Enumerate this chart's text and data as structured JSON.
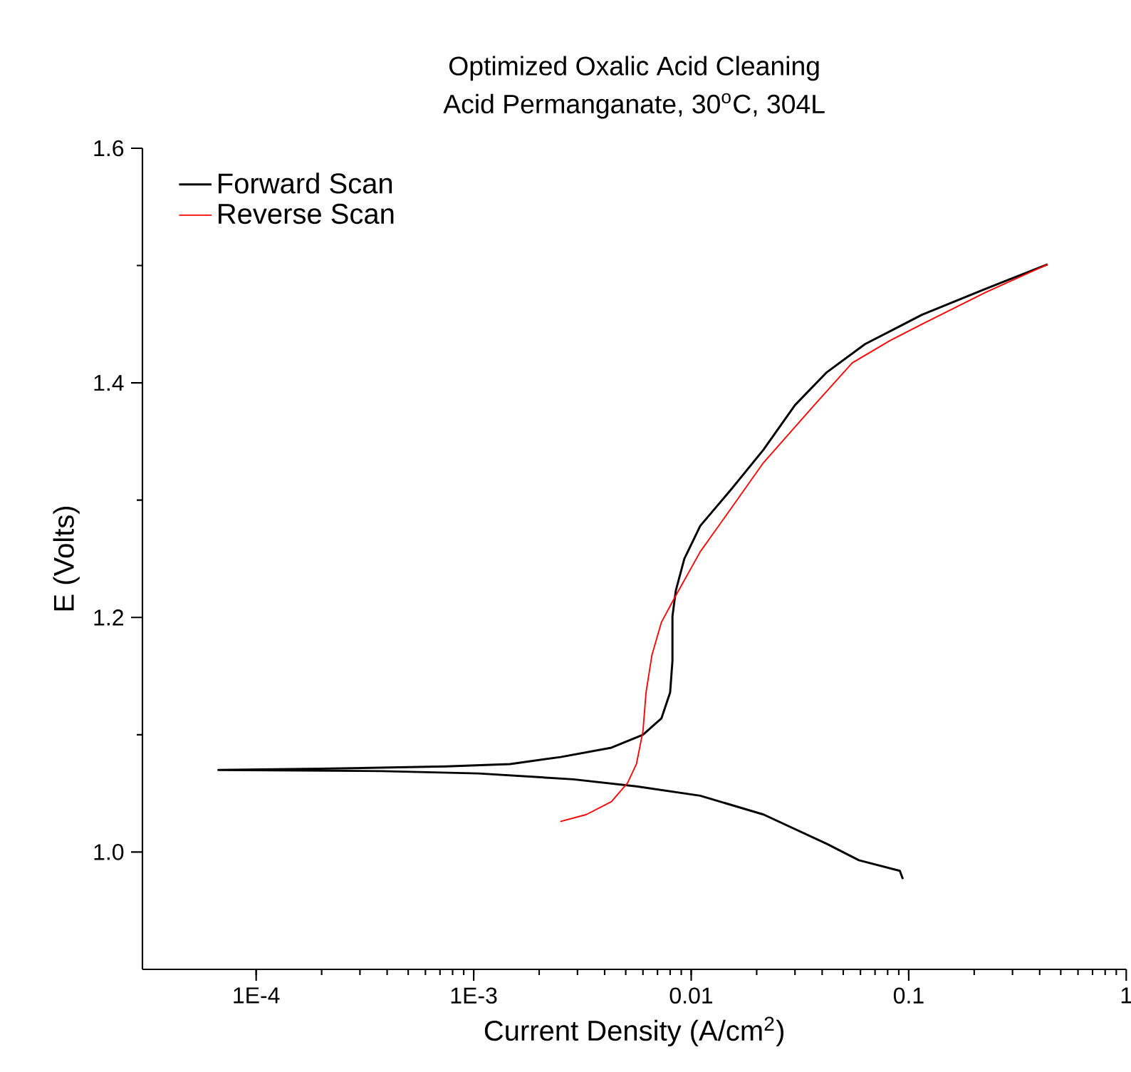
{
  "chart_data": {
    "type": "line",
    "title": "Optimized Oxalic Acid Cleaning",
    "subtitle": "Acid Permanganate, 30$^{o}$C, 304L",
    "xlabel": "Current Density (A/cm$^{2}$)",
    "ylabel": "E (Volts)",
    "log": "x",
    "xlim": [
      3e-05,
      1
    ],
    "ylim": [
      0.9,
      1.6
    ],
    "xticks": [
      {
        "value": 0.0001,
        "label": "1E-4"
      },
      {
        "value": 0.001,
        "label": "1E-3"
      },
      0.01,
      0.1,
      1
    ],
    "yticks": [
      {
        "value": 1.0,
        "label": "1.0"
      },
      1.2,
      1.4,
      1.6
    ],
    "grid": false,
    "legend": "top left",
    "marker": "none",
    "line_style": "solid",
    "series": [
      {
        "name": "Forward Scan",
        "color": "#000000",
        "x": [
          0.094,
          0.091,
          0.059,
          0.042,
          0.0215,
          0.011,
          0.0056,
          0.00287,
          0.00105,
          0.00038,
          6.7e-05,
          0.000196,
          0.00075,
          0.00147,
          0.00251,
          0.0043,
          0.006,
          0.0073,
          0.008,
          0.0082,
          0.0082,
          0.0085,
          0.0093,
          0.011,
          0.0154,
          0.0215,
          0.03,
          0.042,
          0.063,
          0.115,
          0.225,
          0.435
        ],
        "values": [
          0.977,
          0.984,
          0.993,
          1.007,
          1.032,
          1.048,
          1.056,
          1.062,
          1.067,
          1.069,
          1.07,
          1.071,
          1.073,
          1.075,
          1.081,
          1.089,
          1.1,
          1.114,
          1.136,
          1.163,
          1.201,
          1.223,
          1.25,
          1.278,
          1.31,
          1.343,
          1.381,
          1.409,
          1.433,
          1.458,
          1.48,
          1.501
        ]
      },
      {
        "name": "Reverse Scan",
        "color": "#ff0000",
        "x": [
          0.435,
          0.225,
          0.115,
          0.082,
          0.055,
          0.0368,
          0.0215,
          0.0154,
          0.011,
          0.0084,
          0.0073,
          0.0066,
          0.0062,
          0.006,
          0.0056,
          0.0051,
          0.0043,
          0.0033,
          0.0025
        ],
        "values": [
          1.501,
          1.477,
          1.45,
          1.436,
          1.417,
          1.381,
          1.332,
          1.294,
          1.256,
          1.217,
          1.196,
          1.168,
          1.136,
          1.103,
          1.075,
          1.059,
          1.043,
          1.032,
          1.026
        ]
      }
    ]
  }
}
